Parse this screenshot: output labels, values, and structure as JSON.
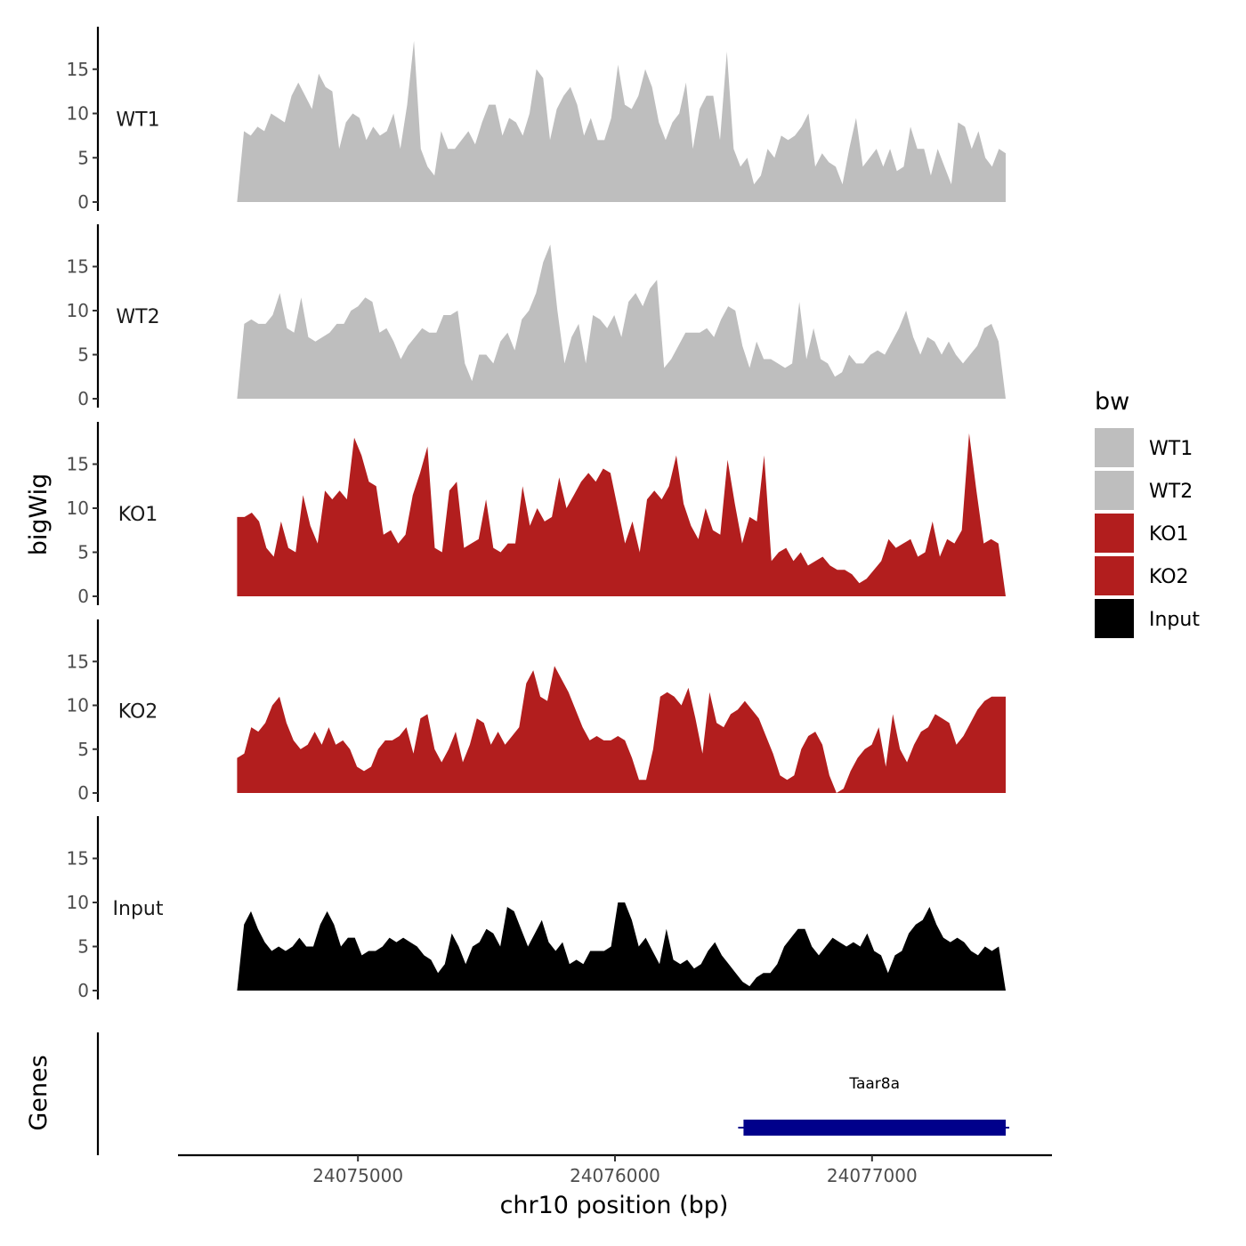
{
  "chart_data": {
    "type": "area",
    "xlabel": "chr10 position (bp)",
    "ylabel": "bigWig",
    "genes_label": "Genes",
    "xlim": [
      24074300,
      24077700
    ],
    "ylim": [
      0,
      19.8
    ],
    "x_ticks": [
      24075000,
      24076000,
      24077000
    ],
    "y_ticks": [
      0,
      5,
      10,
      15
    ],
    "x_range": [
      24074530,
      24077520
    ],
    "legend": {
      "title": "bw",
      "position": "right",
      "items": [
        {
          "label": "WT1",
          "color": "#bebebe"
        },
        {
          "label": "WT2",
          "color": "#bebebe"
        },
        {
          "label": "KO1",
          "color": "#b21e1e"
        },
        {
          "label": "KO2",
          "color": "#b21e1e"
        },
        {
          "label": "Input",
          "color": "#000000"
        }
      ]
    },
    "series": [
      {
        "name": "WT1",
        "color": "#bebebe",
        "values": [
          0,
          8,
          7.5,
          8.5,
          8,
          10,
          9.5,
          9,
          12,
          13.5,
          12,
          10.5,
          14.5,
          13,
          12.5,
          6,
          9,
          10,
          9.5,
          7,
          8.5,
          7.5,
          8,
          10,
          6,
          11,
          18.2,
          6,
          4,
          3,
          8,
          6,
          6,
          7,
          8,
          6.5,
          9,
          11,
          11,
          7.5,
          9.5,
          9,
          7.5,
          10,
          15,
          14,
          7,
          10.5,
          12,
          13,
          11,
          7.5,
          9.5,
          7,
          7,
          9.5,
          15.5,
          11,
          10.5,
          12,
          15,
          13,
          9,
          7,
          9,
          10,
          13.5,
          6,
          10.5,
          12,
          12,
          7,
          17,
          6,
          4,
          5,
          2,
          3,
          6,
          5,
          7.5,
          7,
          7.5,
          8.5,
          10,
          4,
          5.5,
          4.5,
          4,
          2,
          6,
          9.5,
          4,
          5,
          6,
          4,
          6,
          3.5,
          4,
          8.5,
          6,
          6,
          3,
          6,
          4,
          2,
          9,
          8.5,
          6,
          8,
          5,
          4,
          6,
          5.5
        ]
      },
      {
        "name": "WT2",
        "color": "#bebebe",
        "values": [
          0,
          8.5,
          9,
          8.5,
          8.5,
          9.5,
          12,
          8,
          7.5,
          11.5,
          7,
          6.5,
          7,
          7.5,
          8.5,
          8.5,
          10,
          10.5,
          11.5,
          11,
          7.5,
          8,
          6.5,
          4.5,
          6,
          7,
          8,
          7.5,
          7.5,
          9.5,
          9.5,
          10,
          4,
          2,
          5,
          5,
          4,
          6.5,
          7.5,
          5.5,
          9,
          10,
          12,
          15.5,
          17.5,
          10,
          4,
          7,
          8.5,
          4,
          9.5,
          9,
          8,
          9.5,
          7,
          11,
          12,
          10.5,
          12.5,
          13.5,
          3.5,
          4.5,
          6,
          7.5,
          7.5,
          7.5,
          8,
          7,
          9,
          10.5,
          10,
          6,
          3.5,
          6.5,
          4.5,
          4.5,
          4,
          3.5,
          4,
          11,
          4.5,
          8,
          4.5,
          4,
          2.5,
          3,
          5,
          4,
          4,
          5,
          5.5,
          5,
          6.5,
          8,
          10,
          7,
          5,
          7,
          6.5,
          5,
          6.5,
          5,
          4,
          5,
          6,
          8,
          8.5,
          6.5,
          0
        ]
      },
      {
        "name": "KO1",
        "color": "#b21e1e",
        "values": [
          9,
          9,
          9.5,
          8.5,
          5.5,
          4.5,
          8.5,
          5.5,
          5,
          11.5,
          8,
          6,
          12,
          11,
          12,
          11,
          18,
          16,
          13,
          12.5,
          7,
          7.5,
          6,
          7,
          11.5,
          14,
          17,
          5.5,
          5,
          12,
          13,
          5.5,
          6,
          6.5,
          11,
          5.5,
          5,
          6,
          6,
          12.5,
          8,
          10,
          8.5,
          9,
          13.5,
          10,
          11.5,
          13,
          14,
          13,
          14.5,
          14,
          10,
          6,
          8.5,
          5,
          11,
          12,
          11,
          12.5,
          16,
          10.5,
          8,
          6.5,
          10,
          7.5,
          7,
          15.5,
          10.5,
          6,
          9,
          8.5,
          16,
          4,
          5,
          5.5,
          4,
          5,
          3.5,
          4,
          4.5,
          3.5,
          3,
          3,
          2.5,
          1.5,
          2,
          3,
          4,
          6.5,
          5.5,
          6,
          6.5,
          4.5,
          5,
          8.5,
          4.5,
          6.5,
          6,
          7.5,
          18.5,
          12,
          6,
          6.5,
          6,
          0
        ]
      },
      {
        "name": "KO2",
        "color": "#b21e1e",
        "values": [
          4,
          4.5,
          7.5,
          7,
          8,
          10,
          11,
          8,
          6,
          5,
          5.5,
          7,
          5.5,
          7.5,
          5.5,
          6,
          5,
          3,
          2.5,
          3,
          5,
          6,
          6,
          6.5,
          7.5,
          4.5,
          8.5,
          9,
          5,
          3.5,
          5,
          7,
          3.5,
          5.5,
          8.5,
          8,
          5.5,
          7,
          5.5,
          6.5,
          7.5,
          12.5,
          14,
          11,
          10.5,
          14.5,
          13,
          11.5,
          9.5,
          7.5,
          6,
          6.5,
          6,
          6,
          6.5,
          6,
          4,
          1.5,
          1.5,
          5,
          11,
          11.5,
          11,
          10,
          12,
          8.5,
          4.5,
          11.5,
          8,
          7.5,
          9,
          9.5,
          10.5,
          9.5,
          8.5,
          6.5,
          4.5,
          2,
          1.5,
          2,
          5,
          6.5,
          7,
          5.5,
          2,
          0,
          0.5,
          2.5,
          4,
          5,
          5.5,
          7.5,
          3,
          9,
          5,
          3.5,
          5.5,
          7,
          7.5,
          9,
          8.5,
          8,
          5.5,
          6.5,
          8,
          9.5,
          10.5,
          11,
          11,
          11
        ]
      },
      {
        "name": "Input",
        "color": "#000000",
        "values": [
          0,
          7.5,
          9,
          7,
          5.5,
          4.5,
          5,
          4.5,
          5,
          6,
          5,
          5,
          7.5,
          9,
          7.5,
          5,
          6,
          6,
          4,
          4.5,
          4.5,
          5,
          6,
          5.5,
          6,
          5.5,
          5,
          4,
          3.5,
          2,
          3,
          6.5,
          5,
          3,
          5,
          5.5,
          7,
          6.5,
          5,
          9.5,
          9,
          7,
          5,
          6.5,
          8,
          5.5,
          4.5,
          5.5,
          3,
          3.5,
          3,
          4.5,
          4.5,
          4.5,
          5,
          10,
          10,
          8,
          5,
          6,
          4.5,
          3,
          7,
          3.5,
          3,
          3.5,
          2.5,
          3,
          4.5,
          5.5,
          4,
          3,
          2,
          1,
          0.5,
          1.5,
          2,
          2,
          3,
          5,
          6,
          7,
          7,
          5,
          4,
          5,
          6,
          5.5,
          5,
          5.5,
          5,
          6.5,
          4.5,
          4,
          2,
          4,
          4.5,
          6.5,
          7.5,
          8,
          9.5,
          7.5,
          6,
          5.5,
          6,
          5.5,
          4.5,
          4,
          5,
          4.5,
          5,
          0
        ]
      }
    ],
    "genes": [
      {
        "name": "Taar8a",
        "start": 24076500,
        "end": 24077520,
        "strand": "+",
        "color": "#00008b"
      }
    ]
  }
}
